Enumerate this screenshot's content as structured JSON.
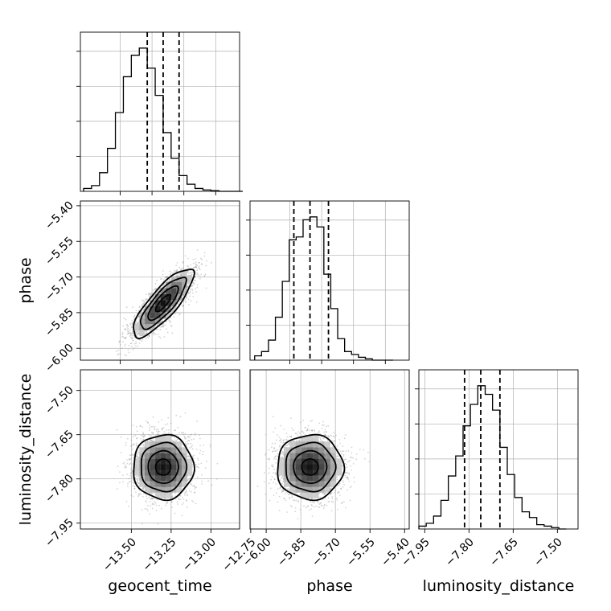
{
  "chart_data": [
    {
      "id": "hist-geocent_time",
      "type": "histogram",
      "series_name": "geocent_time",
      "bin_edges": [
        -13.8,
        -13.75,
        -13.7,
        -13.65,
        -13.6,
        -13.55,
        -13.5,
        -13.45,
        -13.4,
        -13.35,
        -13.3,
        -13.25,
        -13.2,
        -13.15,
        -13.1,
        -13.05,
        -13.0,
        -12.95,
        -12.9,
        -12.85,
        -12.8
      ],
      "counts": [
        0.02,
        0.04,
        0.13,
        0.3,
        0.55,
        0.8,
        0.95,
        1.0,
        0.86,
        0.67,
        0.41,
        0.23,
        0.11,
        0.05,
        0.02,
        0.01,
        0.005,
        0.0,
        0.0,
        0.0
      ],
      "quantiles": [
        -13.4,
        -13.3,
        -13.2
      ],
      "xlim": [
        -13.82,
        -12.82
      ],
      "grid": true
    },
    {
      "id": "scatter-geocent_time-phase",
      "type": "scatter",
      "x_name": "geocent_time",
      "y_name": "phase",
      "xlim": [
        -13.82,
        -12.82
      ],
      "ylim": [
        -6.05,
        -5.38
      ],
      "mean": [
        -13.3,
        -5.81
      ],
      "std": [
        0.095,
        0.072
      ],
      "corr": 0.82,
      "contour_levels_sigma": [
        1,
        2,
        3
      ],
      "yticks": [
        -6.0,
        -5.85,
        -5.7,
        -5.55,
        -5.4
      ],
      "ytick_labels": [
        "−6.00",
        "−5.85",
        "−5.70",
        "−5.55",
        "−5.40"
      ],
      "ylabel": "phase",
      "grid": true
    },
    {
      "id": "hist-phase",
      "type": "histogram",
      "series_name": "phase",
      "bin_edges": [
        -6.05,
        -6.02,
        -5.99,
        -5.96,
        -5.93,
        -5.9,
        -5.87,
        -5.84,
        -5.81,
        -5.78,
        -5.75,
        -5.72,
        -5.69,
        -5.66,
        -5.63,
        -5.6,
        -5.57,
        -5.54,
        -5.51,
        -5.48,
        -5.45
      ],
      "counts": [
        0.03,
        0.06,
        0.14,
        0.3,
        0.55,
        0.84,
        0.86,
        0.98,
        1.0,
        0.93,
        0.6,
        0.36,
        0.15,
        0.06,
        0.04,
        0.02,
        0.01,
        0.0,
        0.0,
        0.0
      ],
      "quantiles": [
        -5.88,
        -5.81,
        -5.73
      ],
      "xlim": [
        -6.07,
        -5.38
      ],
      "grid": true
    },
    {
      "id": "scatter-geocent_time-luminosity_distance",
      "type": "scatter",
      "x_name": "geocent_time",
      "y_name": "luminosity_distance",
      "xlim": [
        -13.82,
        -12.82
      ],
      "ylim": [
        -7.97,
        -7.43
      ],
      "mean": [
        -13.3,
        -7.76
      ],
      "std": [
        0.095,
        0.055
      ],
      "corr": 0.0,
      "contour_levels_sigma": [
        1,
        2,
        3
      ],
      "xticks": [
        -13.5,
        -13.25,
        -13.0,
        -12.75
      ],
      "xtick_labels": [
        "−13.50",
        "−13.25",
        "−13.00",
        "−12.75"
      ],
      "yticks": [
        -7.95,
        -7.8,
        -7.65,
        -7.5
      ],
      "ytick_labels": [
        "−7.95",
        "−7.80",
        "−7.65",
        "−7.50"
      ],
      "xlabel": "geocent_time",
      "ylabel": "luminosity_distance",
      "grid": true
    },
    {
      "id": "scatter-phase-luminosity_distance",
      "type": "scatter",
      "x_name": "phase",
      "y_name": "luminosity_distance",
      "xlim": [
        -6.07,
        -5.38
      ],
      "ylim": [
        -7.97,
        -7.43
      ],
      "mean": [
        -5.81,
        -7.76
      ],
      "std": [
        0.072,
        0.055
      ],
      "corr": 0.0,
      "contour_levels_sigma": [
        1,
        2,
        3
      ],
      "xticks": [
        -6.0,
        -5.85,
        -5.7,
        -5.55,
        -5.4
      ],
      "xtick_labels": [
        "−6.00",
        "−5.85",
        "−5.70",
        "−5.55",
        "−5.40"
      ],
      "xlabel": "phase",
      "grid": true
    },
    {
      "id": "hist-luminosity_distance",
      "type": "histogram",
      "series_name": "luminosity_distance",
      "bin_edges": [
        -7.97,
        -7.945,
        -7.92,
        -7.895,
        -7.87,
        -7.845,
        -7.82,
        -7.795,
        -7.77,
        -7.745,
        -7.72,
        -7.695,
        -7.67,
        -7.645,
        -7.62,
        -7.595,
        -7.57,
        -7.545,
        -7.52,
        -7.495,
        -7.47
      ],
      "counts": [
        0.02,
        0.04,
        0.09,
        0.2,
        0.37,
        0.51,
        0.72,
        0.87,
        1.0,
        0.94,
        0.83,
        0.57,
        0.38,
        0.22,
        0.12,
        0.08,
        0.03,
        0.02,
        0.01,
        0.0
      ],
      "quantiles": [
        -7.815,
        -7.76,
        -7.695
      ],
      "xlim": [
        -7.97,
        -7.43
      ],
      "xticks": [
        -7.95,
        -7.8,
        -7.65,
        -7.5
      ],
      "xtick_labels": [
        "−7.95",
        "−7.80",
        "−7.65",
        "−7.50"
      ],
      "xlabel": "luminosity_distance",
      "grid": true
    }
  ]
}
